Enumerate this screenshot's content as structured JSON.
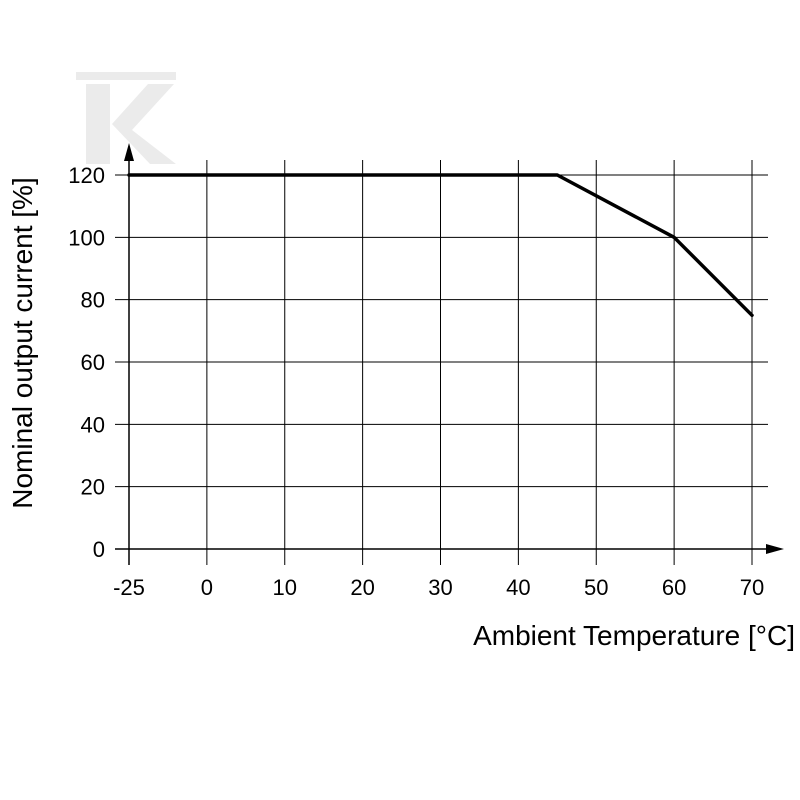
{
  "chart_data": {
    "type": "line",
    "title": "",
    "xlabel": "Ambient Temperature [°C]",
    "ylabel": "Nominal output current [%]",
    "x_ticks": [
      -25,
      0,
      10,
      20,
      30,
      40,
      50,
      60,
      70
    ],
    "y_ticks": [
      0,
      20,
      40,
      60,
      80,
      100,
      120
    ],
    "xlim": [
      -25,
      70
    ],
    "ylim": [
      0,
      120
    ],
    "grid": true,
    "series": [
      {
        "x": [
          -25,
          45,
          60,
          70
        ],
        "y": [
          120,
          120,
          100,
          75
        ]
      }
    ],
    "colors": {
      "line": "#000000",
      "grid": "#000000",
      "watermark": "#ebebeb"
    }
  }
}
